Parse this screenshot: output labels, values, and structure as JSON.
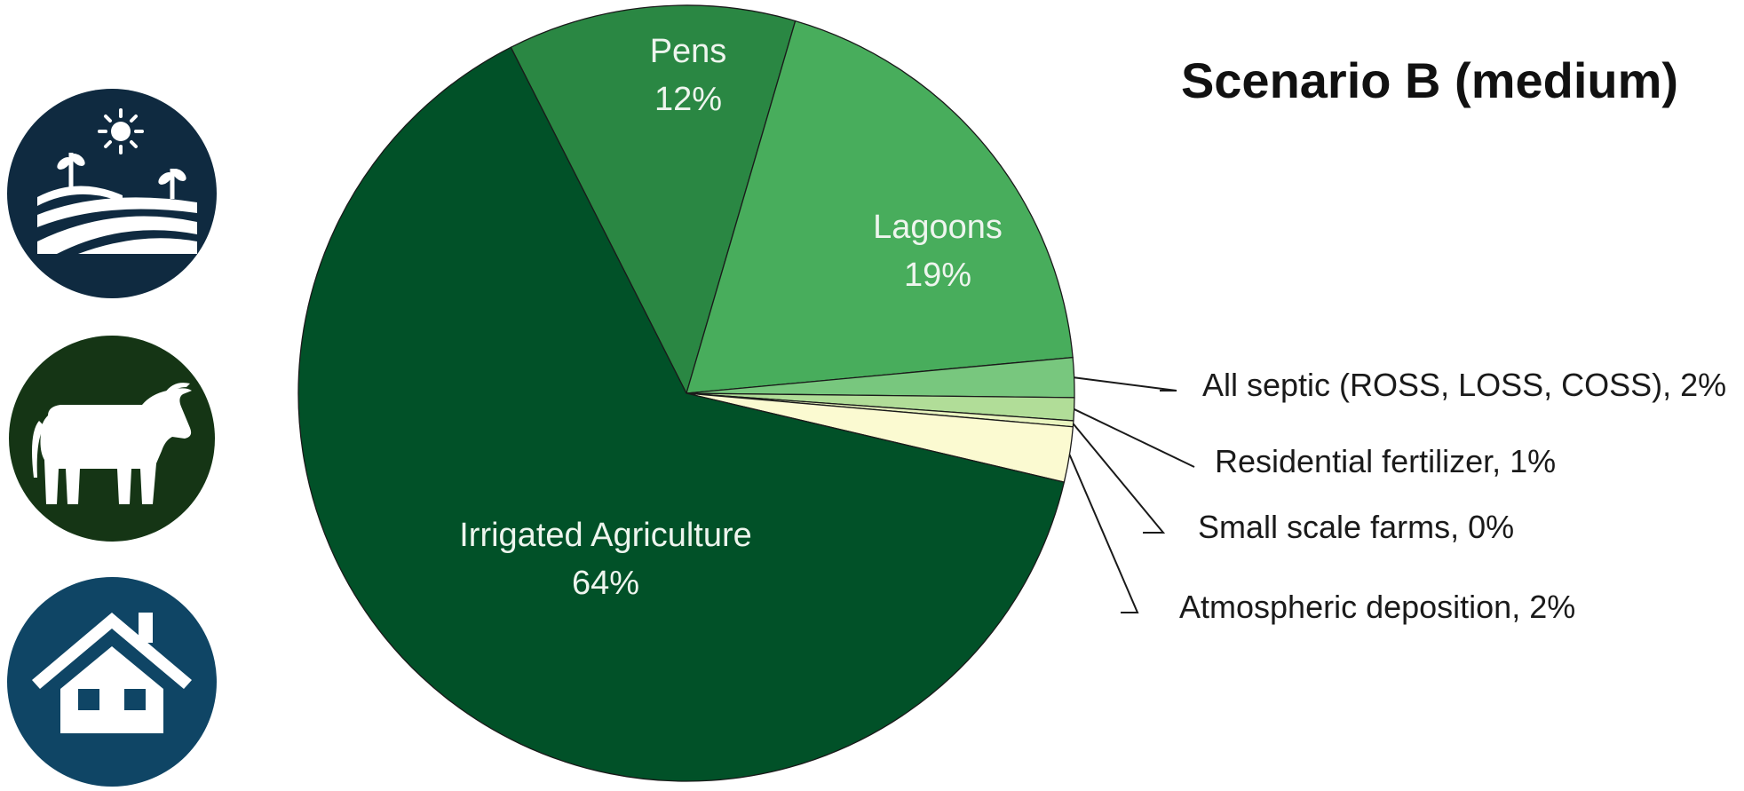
{
  "icons": [
    {
      "name": "farmland-icon",
      "bg": "#0f2a40"
    },
    {
      "name": "cattle-icon",
      "bg": "#153515"
    },
    {
      "name": "house-icon",
      "bg": "#0f4565"
    }
  ],
  "chart_data": {
    "type": "pie",
    "title": "Scenario B (medium)",
    "slices": [
      {
        "label": "Pens",
        "pct_label": "12%",
        "value": 12.0,
        "color": "#2a8743",
        "label_style": "inside"
      },
      {
        "label": "Lagoons",
        "pct_label": "19%",
        "value": 19.0,
        "color": "#48ad5c",
        "label_style": "inside"
      },
      {
        "label": "All septic (ROSS, LOSS, COSS), 2%",
        "value": 1.65,
        "color": "#78c77e",
        "label_style": "callout"
      },
      {
        "label": "Residential fertilizer, 1%",
        "value": 0.95,
        "color": "#b1dd98",
        "label_style": "callout"
      },
      {
        "label": "Small scale farms, 0%",
        "value": 0.25,
        "color": "#e9f4bf",
        "label_style": "callout"
      },
      {
        "label": "Atmospheric deposition, 2%",
        "value": 2.3,
        "color": "#fbfad1",
        "label_style": "callout"
      },
      {
        "label": "Irrigated Agriculture",
        "pct_label": "64%",
        "value": 63.85,
        "color": "#015128",
        "label_style": "inside"
      }
    ]
  }
}
